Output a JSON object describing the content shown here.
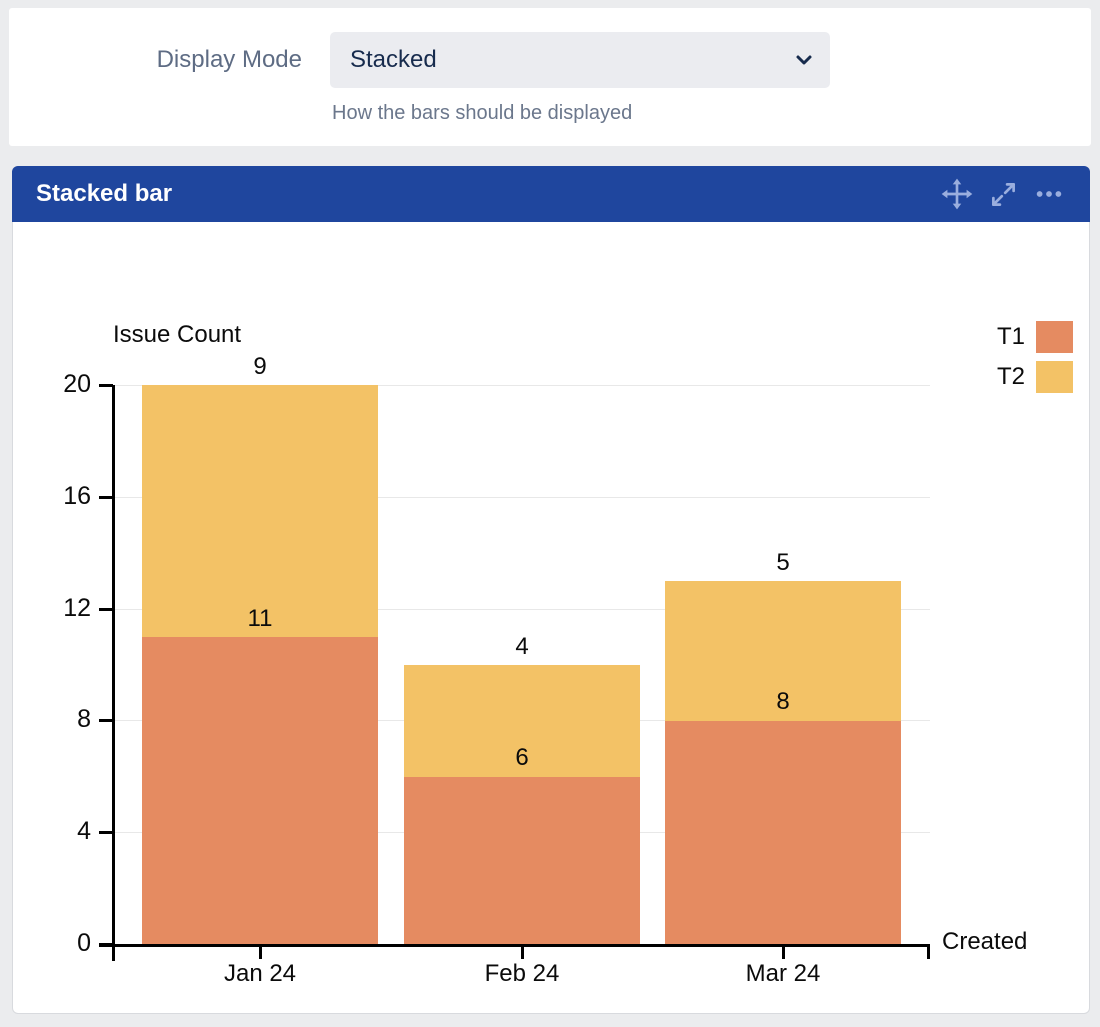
{
  "config": {
    "label": "Display Mode",
    "select_value": "Stacked",
    "helper": "How the bars should be displayed"
  },
  "gadget": {
    "title": "Stacked bar",
    "header_color": "#1f469e",
    "icon_color": "#9aaede",
    "icons": [
      "move-icon",
      "expand-icon",
      "more-icon"
    ]
  },
  "chart_data": {
    "type": "bar",
    "stacked": true,
    "title": "Issue Count",
    "xlabel": "Created",
    "ylabel": "Issue Count",
    "categories": [
      "Jan 24",
      "Feb 24",
      "Mar 24"
    ],
    "series": [
      {
        "name": "T1",
        "color": "#e58b61",
        "values": [
          11,
          6,
          8
        ]
      },
      {
        "name": "T2",
        "color": "#f3c266",
        "values": [
          9,
          4,
          5
        ]
      }
    ],
    "totals": [
      20,
      10,
      13
    ],
    "ylim": [
      0,
      20
    ],
    "yticks": [
      0,
      4,
      8,
      12,
      16,
      20
    ],
    "grid": true,
    "legend_position": "top-right",
    "value_labels": "above-segment"
  }
}
